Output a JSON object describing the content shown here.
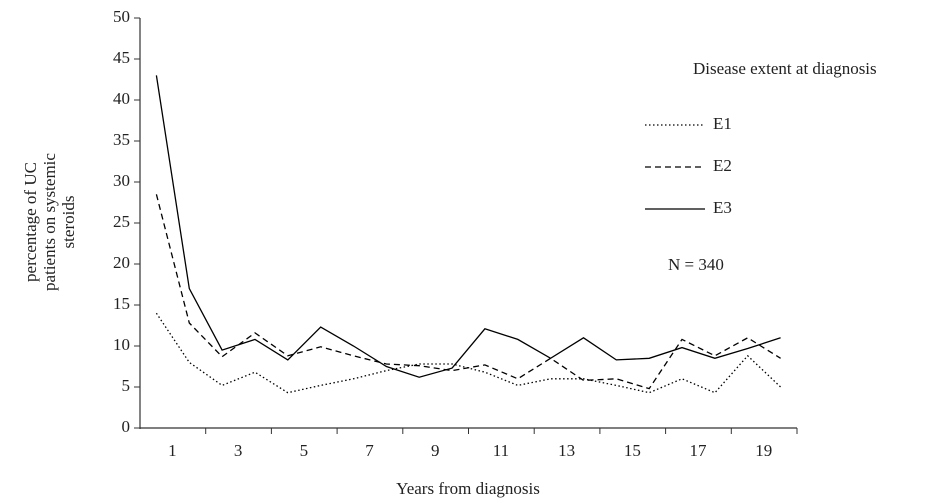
{
  "chart_data": {
    "type": "line",
    "xlabel": "Years from diagnosis",
    "ylabel": [
      "percentage of UC",
      "patients on systemic",
      "steroids"
    ],
    "categories": [
      "1",
      null,
      "3",
      null,
      "5",
      null,
      "7",
      null,
      "9",
      null,
      "11",
      null,
      "13",
      null,
      "15",
      null,
      "17",
      null,
      "19",
      null
    ],
    "series": [
      {
        "name": "E1",
        "color": "#000000",
        "dash": "dotted",
        "values": [
          14,
          8,
          5.2,
          6.8,
          4.3,
          5.2,
          6,
          7,
          7.8,
          7.8,
          6.8,
          5.2,
          6,
          6,
          5.2,
          4.3,
          6,
          4.3,
          8.8,
          5
        ]
      },
      {
        "name": "E2",
        "color": "#000000",
        "dash": "dashed",
        "values": [
          28.5,
          12.8,
          8.7,
          11.6,
          8.8,
          9.9,
          8.8,
          7.8,
          7.6,
          7,
          7.7,
          6,
          8.5,
          5.8,
          6,
          4.8,
          10.8,
          8.8,
          11,
          8.5
        ]
      },
      {
        "name": "E3",
        "color": "#000000",
        "dash": "solid",
        "values": [
          43,
          17,
          9.5,
          10.8,
          8.3,
          12.3,
          10,
          7.5,
          6.2,
          7.3,
          12.1,
          10.8,
          8.5,
          11,
          8.3,
          8.5,
          9.8,
          8.5,
          9.7,
          11
        ]
      }
    ],
    "legend_title": "Disease extent at diagnosis",
    "annotation": "N = 340",
    "ylim": [
      0,
      50
    ],
    "yticks": [
      0,
      5,
      10,
      15,
      20,
      25,
      30,
      35,
      40,
      45,
      50
    ],
    "grid": false
  }
}
